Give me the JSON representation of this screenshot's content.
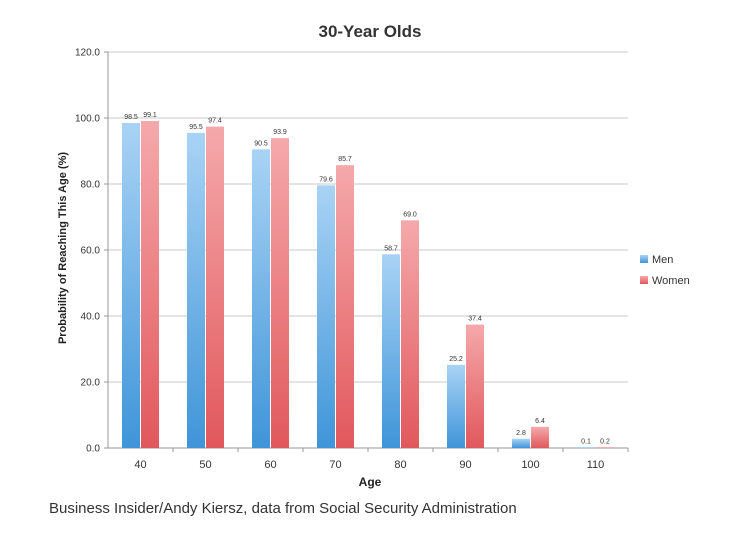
{
  "chart_data": {
    "type": "bar",
    "title": "30-Year Olds",
    "xlabel": "Age",
    "ylabel": "Probability of Reaching This Age (%)",
    "categories": [
      "40",
      "50",
      "60",
      "70",
      "80",
      "90",
      "100",
      "110"
    ],
    "series": [
      {
        "name": "Men",
        "values": [
          98.5,
          95.5,
          90.5,
          79.6,
          58.7,
          25.2,
          2.8,
          0.1
        ],
        "labels": [
          "98.5",
          "95.5",
          "90.5",
          "79.6",
          "58.7",
          "25.2",
          "2.8",
          "0.1"
        ],
        "color": "#5aa7e3"
      },
      {
        "name": "Women",
        "values": [
          99.1,
          97.4,
          93.9,
          85.7,
          69.0,
          37.4,
          6.4,
          0.2
        ],
        "labels": [
          "99.1",
          "97.4",
          "93.9",
          "85.7",
          "69.0",
          "37.4",
          "6.4",
          "0.2"
        ],
        "color": "#ea6e71"
      }
    ],
    "ylim": [
      0,
      120
    ],
    "yticks": [
      "0.0",
      "20.0",
      "40.0",
      "60.0",
      "80.0",
      "100.0",
      "120.0"
    ],
    "grid": true,
    "legend": "right"
  },
  "caption": "Business Insider/Andy Kiersz, data from Social Security Administration"
}
